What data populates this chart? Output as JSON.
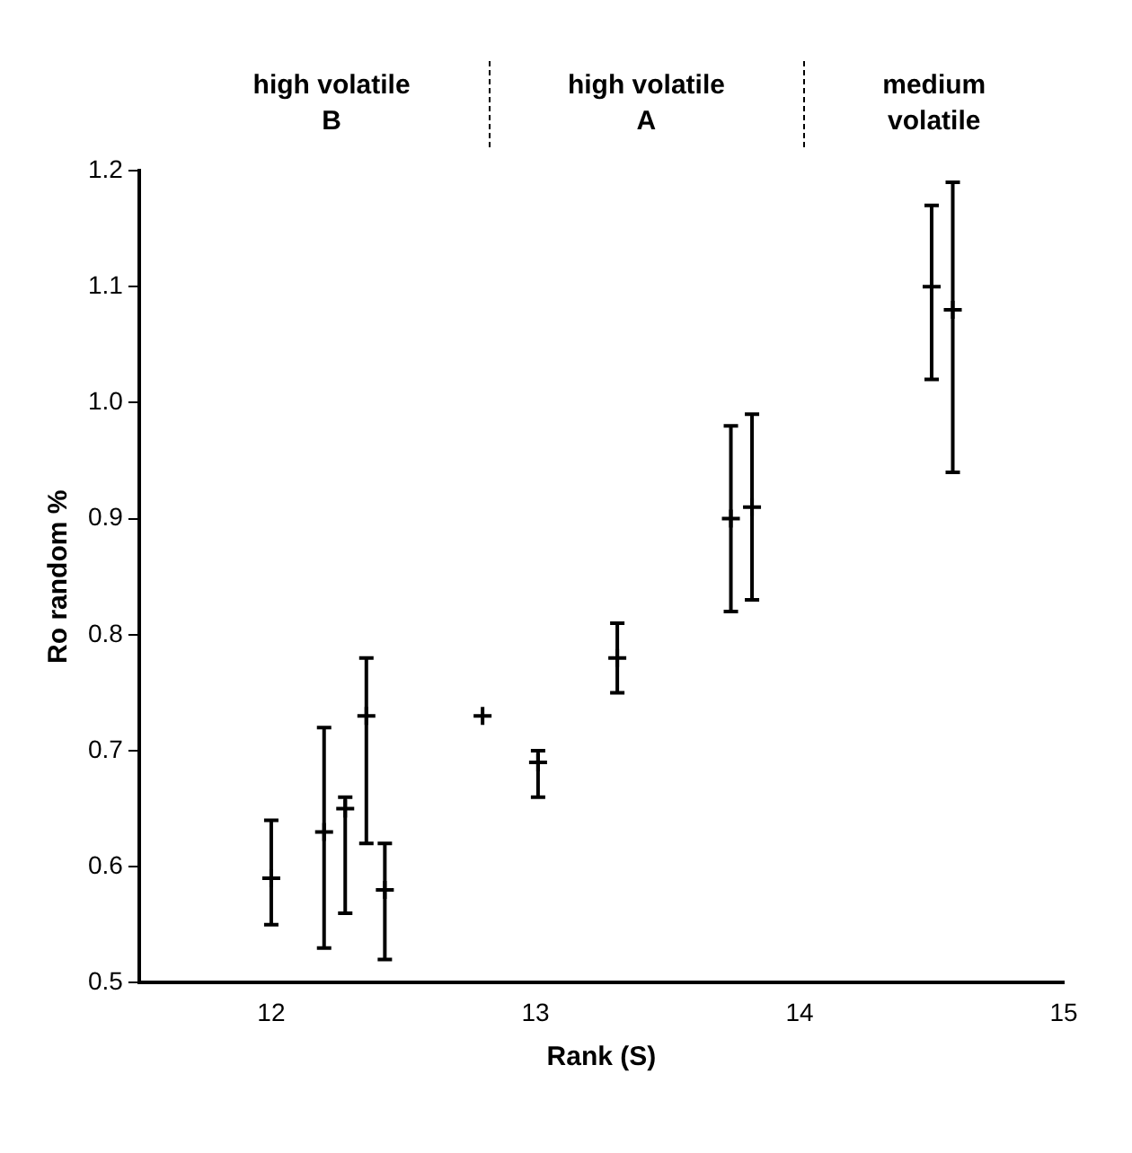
{
  "chart_data": {
    "type": "scatter",
    "xlabel": "Rank (S)",
    "ylabel": "Ro random %",
    "x": [
      12.0,
      12.2,
      12.28,
      12.36,
      12.43,
      12.8,
      13.01,
      13.31,
      13.74,
      13.82,
      14.5,
      14.58
    ],
    "series": [
      {
        "color": "#000000",
        "values": [
          0.59,
          0.63,
          0.65,
          0.73,
          0.58,
          0.73,
          0.69,
          0.78,
          0.9,
          0.91,
          1.1,
          1.08
        ],
        "errors": [
          [
            0.55,
            0.64
          ],
          [
            0.53,
            0.72
          ],
          [
            0.56,
            0.66
          ],
          [
            0.62,
            0.78
          ],
          [
            0.52,
            0.62
          ],
          null,
          [
            0.66,
            0.7
          ],
          [
            0.75,
            0.81
          ],
          [
            0.82,
            0.98
          ],
          [
            0.83,
            0.99
          ],
          [
            1.02,
            1.17
          ],
          [
            0.94,
            1.19
          ]
        ]
      }
    ],
    "xlim": [
      11.5,
      15
    ],
    "xticks": [
      12,
      13,
      14,
      15
    ],
    "ylim": [
      0.5,
      1.2
    ],
    "yticks": [
      0.5,
      0.6,
      0.7,
      0.8,
      0.9,
      {
        "value": 1.0,
        "label": "1.0"
      },
      1.1,
      1.2
    ],
    "annotations": [
      "high volatile\nB",
      "high volatile\nA",
      "medium\nvolatile"
    ],
    "marker": "cross",
    "grid": false,
    "legend": false
  }
}
